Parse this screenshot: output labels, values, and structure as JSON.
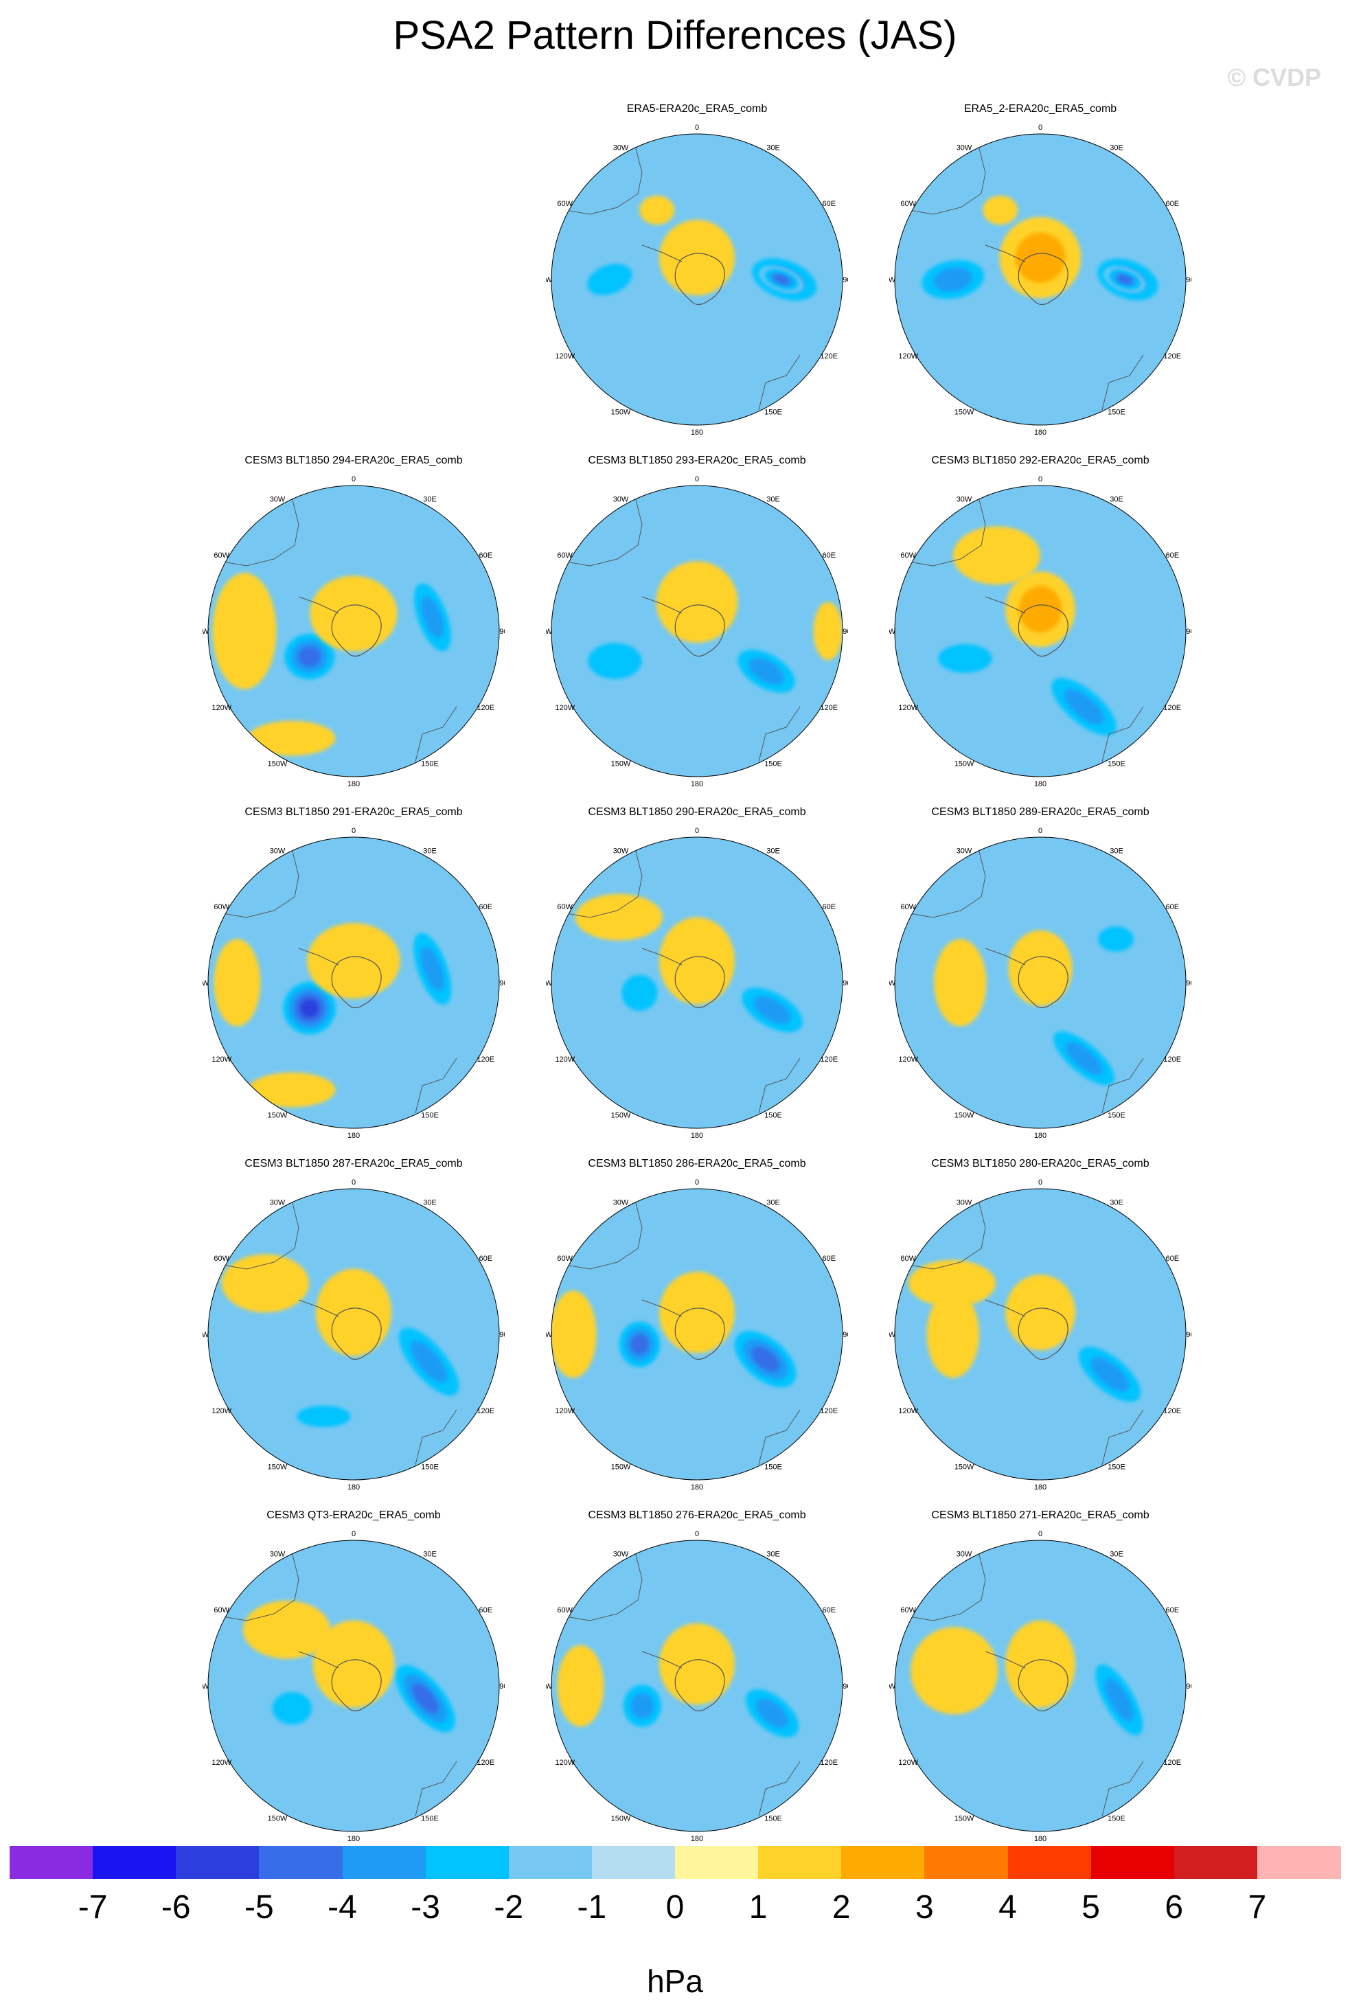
{
  "title": "PSA2 Pattern Differences (JAS)",
  "watermark": "© CVDP",
  "colorbar": {
    "unit": "hPa",
    "colors": [
      "#8a2be2",
      "#1a14f0",
      "#2c3fdc",
      "#356ee8",
      "#1f9bf5",
      "#00c3ff",
      "#76c8f2",
      "#b5ddf2",
      "#fff59a",
      "#ffd22a",
      "#ffaa00",
      "#ff7a00",
      "#ff3c00",
      "#e60000",
      "#d21e1e",
      "#ffb4b4"
    ],
    "ticks": [
      "-7",
      "-6",
      "-5",
      "-4",
      "-3",
      "-2",
      "-1",
      "0",
      "1",
      "2",
      "3",
      "4",
      "5",
      "6",
      "7"
    ]
  },
  "lon_labels": [
    "0",
    "30E",
    "60E",
    "90E",
    "120E",
    "150E",
    "180",
    "150W",
    "120W",
    "90W",
    "60W",
    "30W"
  ],
  "panels": [
    {
      "title": "ERA5-ERA20c_ERA5_comb",
      "blobs": [
        {
          "lon": 90,
          "r": 0.6,
          "w": 0.32,
          "h": 0.18,
          "rot": 20,
          "level": -3
        },
        {
          "lon": 90,
          "r": 0.58,
          "w": 0.16,
          "h": 0.08,
          "rot": 20,
          "level": -4
        },
        {
          "lon": 270,
          "r": 0.6,
          "w": 0.26,
          "h": 0.16,
          "rot": -20,
          "level": -2
        },
        {
          "lon": 0,
          "r": 0.15,
          "w": 0.26,
          "h": 0.26,
          "rot": 0,
          "level": 1
        },
        {
          "lon": 330,
          "r": 0.55,
          "w": 0.12,
          "h": 0.1,
          "rot": 0,
          "level": 1
        }
      ]
    },
    {
      "title": "ERA5_2-ERA20c_ERA5_comb",
      "blobs": [
        {
          "lon": 90,
          "r": 0.6,
          "w": 0.3,
          "h": 0.18,
          "rot": 20,
          "level": -3
        },
        {
          "lon": 90,
          "r": 0.58,
          "w": 0.15,
          "h": 0.08,
          "rot": 20,
          "level": -4
        },
        {
          "lon": 270,
          "r": 0.6,
          "w": 0.3,
          "h": 0.18,
          "rot": -10,
          "level": -3
        },
        {
          "lon": 0,
          "r": 0.15,
          "w": 0.28,
          "h": 0.28,
          "rot": 0,
          "level": 2
        },
        {
          "lon": 330,
          "r": 0.55,
          "w": 0.12,
          "h": 0.1,
          "rot": 0,
          "level": 1
        }
      ]
    },
    {
      "title": "CESM3 BLT1850 294-ERA20c_ERA5_comb",
      "blobs": [
        {
          "lon": 240,
          "r": 0.35,
          "w": 0.22,
          "h": 0.2,
          "rot": 0,
          "level": -4
        },
        {
          "lon": 80,
          "r": 0.55,
          "w": 0.34,
          "h": 0.14,
          "rot": 70,
          "level": -3
        },
        {
          "lon": 270,
          "r": 0.75,
          "w": 0.22,
          "h": 0.4,
          "rot": 0,
          "level": 1
        },
        {
          "lon": 0,
          "r": 0.12,
          "w": 0.3,
          "h": 0.26,
          "rot": 0,
          "level": 1
        },
        {
          "lon": 210,
          "r": 0.85,
          "w": 0.3,
          "h": 0.12,
          "rot": 0,
          "level": 1
        }
      ]
    },
    {
      "title": "CESM3 BLT1850 293-ERA20c_ERA5_comb",
      "blobs": [
        {
          "lon": 120,
          "r": 0.55,
          "w": 0.3,
          "h": 0.16,
          "rot": 30,
          "level": -3
        },
        {
          "lon": 250,
          "r": 0.6,
          "w": 0.3,
          "h": 0.2,
          "rot": 0,
          "level": -2
        },
        {
          "lon": 0,
          "r": 0.2,
          "w": 0.28,
          "h": 0.28,
          "rot": 0,
          "level": 1
        },
        {
          "lon": 90,
          "r": 0.9,
          "w": 0.1,
          "h": 0.2,
          "rot": 0,
          "level": 1
        }
      ]
    },
    {
      "title": "CESM3 BLT1850 292-ERA20c_ERA5_comb",
      "blobs": [
        {
          "lon": 150,
          "r": 0.6,
          "w": 0.38,
          "h": 0.16,
          "rot": 40,
          "level": -3
        },
        {
          "lon": 250,
          "r": 0.55,
          "w": 0.3,
          "h": 0.16,
          "rot": 0,
          "level": -2
        },
        {
          "lon": 330,
          "r": 0.6,
          "w": 0.3,
          "h": 0.2,
          "rot": 0,
          "level": 1
        },
        {
          "lon": 0,
          "r": 0.15,
          "w": 0.24,
          "h": 0.26,
          "rot": 0,
          "level": 2
        }
      ]
    },
    {
      "title": "CESM3 BLT1850 291-ERA20c_ERA5_comb",
      "blobs": [
        {
          "lon": 240,
          "r": 0.35,
          "w": 0.22,
          "h": 0.22,
          "rot": 0,
          "level": -5
        },
        {
          "lon": 80,
          "r": 0.55,
          "w": 0.36,
          "h": 0.14,
          "rot": 70,
          "level": -3
        },
        {
          "lon": 270,
          "r": 0.8,
          "w": 0.16,
          "h": 0.3,
          "rot": 0,
          "level": 1
        },
        {
          "lon": 0,
          "r": 0.15,
          "w": 0.32,
          "h": 0.26,
          "rot": 0,
          "level": 1
        },
        {
          "lon": 210,
          "r": 0.85,
          "w": 0.3,
          "h": 0.12,
          "rot": 0,
          "level": 1
        }
      ]
    },
    {
      "title": "CESM3 BLT1850 290-ERA20c_ERA5_comb",
      "blobs": [
        {
          "lon": 110,
          "r": 0.55,
          "w": 0.32,
          "h": 0.16,
          "rot": 30,
          "level": -3
        },
        {
          "lon": 260,
          "r": 0.4,
          "w": 0.2,
          "h": 0.2,
          "rot": 0,
          "level": -2
        },
        {
          "lon": 0,
          "r": 0.15,
          "w": 0.26,
          "h": 0.3,
          "rot": 0,
          "level": 1
        },
        {
          "lon": 310,
          "r": 0.7,
          "w": 0.3,
          "h": 0.16,
          "rot": 0,
          "level": 1
        }
      ]
    },
    {
      "title": "CESM3 BLT1850 289-ERA20c_ERA5_comb",
      "blobs": [
        {
          "lon": 150,
          "r": 0.6,
          "w": 0.36,
          "h": 0.14,
          "rot": 40,
          "level": -3
        },
        {
          "lon": 60,
          "r": 0.6,
          "w": 0.2,
          "h": 0.14,
          "rot": 0,
          "level": -2
        },
        {
          "lon": 270,
          "r": 0.55,
          "w": 0.18,
          "h": 0.3,
          "rot": 0,
          "level": 1
        },
        {
          "lon": 0,
          "r": 0.1,
          "w": 0.22,
          "h": 0.26,
          "rot": 0,
          "level": 1
        }
      ]
    },
    {
      "title": "CESM3 BLT1850 287-ERA20c_ERA5_comb",
      "blobs": [
        {
          "lon": 110,
          "r": 0.55,
          "w": 0.4,
          "h": 0.16,
          "rot": 50,
          "level": -3
        },
        {
          "lon": 0,
          "r": 0.15,
          "w": 0.26,
          "h": 0.3,
          "rot": 0,
          "level": 1
        },
        {
          "lon": 300,
          "r": 0.7,
          "w": 0.3,
          "h": 0.2,
          "rot": 0,
          "level": 1
        },
        {
          "lon": 200,
          "r": 0.6,
          "w": 0.3,
          "h": 0.12,
          "rot": 0,
          "level": -2
        }
      ]
    },
    {
      "title": "CESM3 BLT1850 286-ERA20c_ERA5_comb",
      "blobs": [
        {
          "lon": 110,
          "r": 0.5,
          "w": 0.32,
          "h": 0.18,
          "rot": 40,
          "level": -4
        },
        {
          "lon": 260,
          "r": 0.4,
          "w": 0.18,
          "h": 0.2,
          "rot": 0,
          "level": -4
        },
        {
          "lon": 0,
          "r": 0.15,
          "w": 0.26,
          "h": 0.28,
          "rot": 0,
          "level": 1
        },
        {
          "lon": 270,
          "r": 0.85,
          "w": 0.16,
          "h": 0.3,
          "rot": 0,
          "level": 1
        }
      ]
    },
    {
      "title": "CESM3 BLT1850 280-ERA20c_ERA5_comb",
      "blobs": [
        {
          "lon": 120,
          "r": 0.55,
          "w": 0.36,
          "h": 0.16,
          "rot": 40,
          "level": -3
        },
        {
          "lon": 270,
          "r": 0.6,
          "w": 0.18,
          "h": 0.3,
          "rot": 0,
          "level": 1
        },
        {
          "lon": 0,
          "r": 0.15,
          "w": 0.24,
          "h": 0.26,
          "rot": 0,
          "level": 1
        },
        {
          "lon": 300,
          "r": 0.7,
          "w": 0.3,
          "h": 0.16,
          "rot": 0,
          "level": 1
        }
      ]
    },
    {
      "title": "CESM3 QT3-ERA20c_ERA5_comb",
      "blobs": [
        {
          "lon": 100,
          "r": 0.5,
          "w": 0.36,
          "h": 0.16,
          "rot": 50,
          "level": -4
        },
        {
          "lon": 250,
          "r": 0.45,
          "w": 0.22,
          "h": 0.18,
          "rot": 0,
          "level": -2
        },
        {
          "lon": 0,
          "r": 0.15,
          "w": 0.28,
          "h": 0.3,
          "rot": 0,
          "level": 1
        },
        {
          "lon": 310,
          "r": 0.6,
          "w": 0.3,
          "h": 0.2,
          "rot": 0,
          "level": 1
        }
      ]
    },
    {
      "title": "CESM3 BLT1850 276-ERA20c_ERA5_comb",
      "blobs": [
        {
          "lon": 110,
          "r": 0.55,
          "w": 0.3,
          "h": 0.16,
          "rot": 40,
          "level": -3
        },
        {
          "lon": 250,
          "r": 0.4,
          "w": 0.18,
          "h": 0.2,
          "rot": 0,
          "level": -3
        },
        {
          "lon": 0,
          "r": 0.15,
          "w": 0.26,
          "h": 0.28,
          "rot": 0,
          "level": 1
        },
        {
          "lon": 270,
          "r": 0.8,
          "w": 0.16,
          "h": 0.28,
          "rot": 0,
          "level": 1
        }
      ]
    },
    {
      "title": "CESM3 BLT1850 271-ERA20c_ERA5_comb",
      "blobs": [
        {
          "lon": 100,
          "r": 0.55,
          "w": 0.38,
          "h": 0.14,
          "rot": 60,
          "level": -3
        },
        {
          "lon": 0,
          "r": 0.15,
          "w": 0.24,
          "h": 0.3,
          "rot": 0,
          "level": 1
        },
        {
          "lon": 280,
          "r": 0.6,
          "w": 0.3,
          "h": 0.3,
          "rot": 0,
          "level": 1
        }
      ]
    }
  ]
}
